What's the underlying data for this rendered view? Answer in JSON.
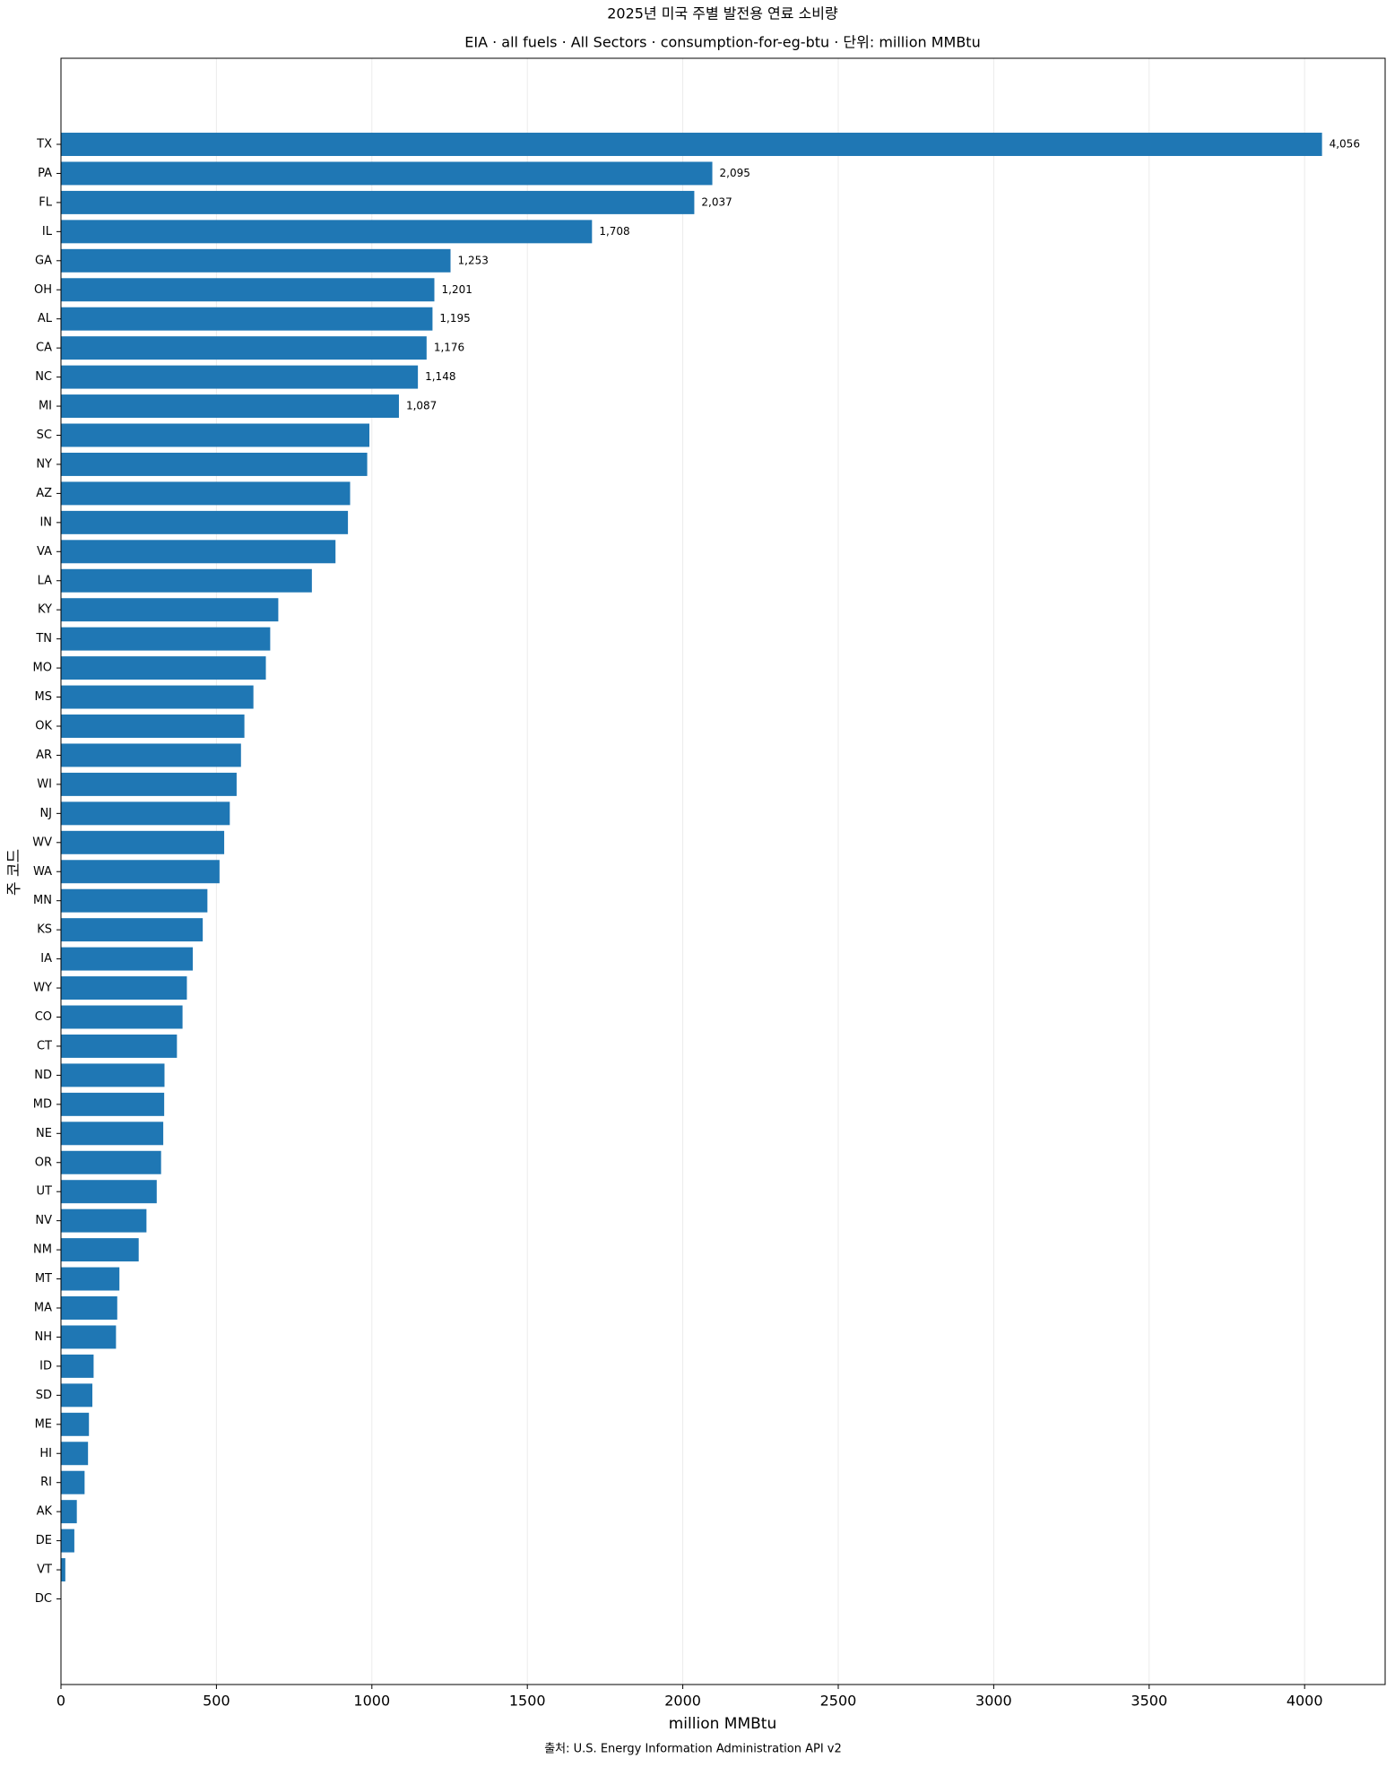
{
  "chart_data": {
    "type": "barh",
    "title": "2025년 미국 주별 발전용 연료 소비량",
    "subtitle": "EIA · all fuels · All Sectors · consumption-for-eg-btu · 단위: million MMBtu",
    "xlabel": "million MMBtu",
    "ylabel": "주 코드",
    "source": "출처: U.S. Energy Information Administration API v2",
    "categories": [
      "TX",
      "PA",
      "FL",
      "IL",
      "GA",
      "OH",
      "AL",
      "CA",
      "NC",
      "MI",
      "SC",
      "NY",
      "AZ",
      "IN",
      "VA",
      "LA",
      "KY",
      "TN",
      "MO",
      "MS",
      "OK",
      "AR",
      "WI",
      "NJ",
      "WV",
      "WA",
      "MN",
      "KS",
      "IA",
      "WY",
      "CO",
      "CT",
      "ND",
      "MD",
      "NE",
      "OR",
      "UT",
      "NV",
      "NM",
      "MT",
      "MA",
      "NH",
      "ID",
      "SD",
      "ME",
      "HI",
      "RI",
      "AK",
      "DE",
      "VT",
      "DC"
    ],
    "values": [
      4056,
      2095,
      2037,
      1708,
      1253,
      1201,
      1195,
      1176,
      1148,
      1087,
      992,
      985,
      930,
      923,
      883,
      807,
      699,
      673,
      659,
      619,
      590,
      579,
      565,
      543,
      525,
      510,
      471,
      456,
      424,
      405,
      391,
      373,
      333,
      332,
      329,
      322,
      308,
      275,
      250,
      188,
      181,
      177,
      105,
      101,
      90,
      87,
      76,
      51,
      43,
      14,
      1
    ],
    "value_labels": [
      "4,056",
      "2,095",
      "2,037",
      "1,708",
      "1,253",
      "1,201",
      "1,195",
      "1,176",
      "1,148",
      "1,087",
      null,
      null,
      null,
      null,
      null,
      null,
      null,
      null,
      null,
      null,
      null,
      null,
      null,
      null,
      null,
      null,
      null,
      null,
      null,
      null,
      null,
      null,
      null,
      null,
      null,
      null,
      null,
      null,
      null,
      null,
      null,
      null,
      null,
      null,
      null,
      null,
      null,
      null,
      null,
      null,
      null
    ],
    "color": "#1f77b4",
    "xlim": [
      0,
      4259
    ],
    "xticks": [
      0,
      500,
      1000,
      1500,
      2000,
      2500,
      3000,
      3500,
      4000
    ],
    "grid": true
  }
}
